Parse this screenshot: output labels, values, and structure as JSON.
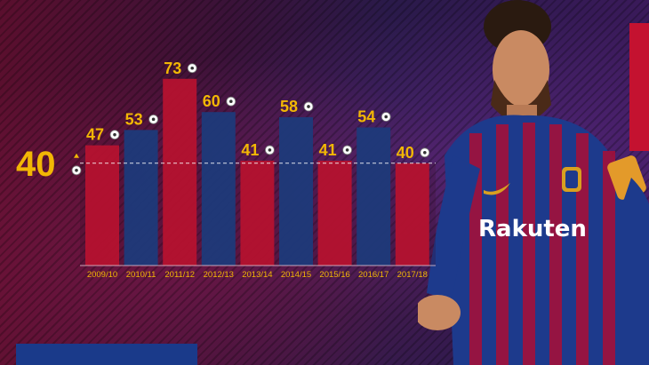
{
  "chart_data": {
    "type": "bar",
    "categories": [
      "2009/10",
      "2010/11",
      "2011/12",
      "2012/13",
      "2013/14",
      "2014/15",
      "2015/16",
      "2016/17",
      "2017/18"
    ],
    "values": [
      47,
      53,
      73,
      60,
      41,
      58,
      41,
      54,
      40
    ],
    "bar_colors": [
      "#b5122f",
      "#1d3a7a",
      "#b5122f",
      "#1d3a7a",
      "#b5122f",
      "#1d3a7a",
      "#b5122f",
      "#1d3a7a",
      "#b5122f"
    ],
    "reference_line": {
      "value": 40,
      "label": "40",
      "style": "dashed"
    },
    "label_color": "#f2b705",
    "icon": "football-icon",
    "marker_icon": "up-triangle-icon",
    "ylim": [
      0,
      80
    ]
  },
  "colors": {
    "accent_red": "#c41230",
    "accent_blue": "#1a3a8a",
    "label_yellow": "#f2b705"
  }
}
